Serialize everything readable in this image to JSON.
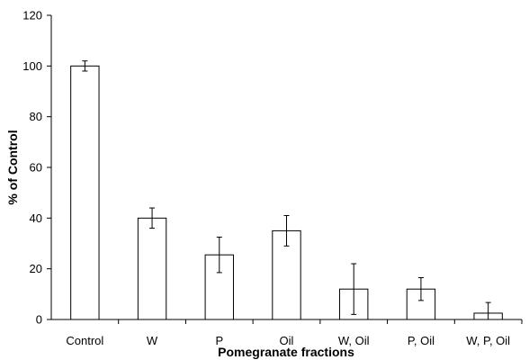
{
  "chart_data": {
    "type": "bar",
    "title": "",
    "xlabel": "Pomegranate fractions",
    "ylabel": "% of Control",
    "ylim": [
      0,
      120
    ],
    "yticks": [
      0,
      20,
      40,
      60,
      80,
      100,
      120
    ],
    "categories": [
      "Control",
      "W",
      "P",
      "Oil",
      "W, Oil",
      "P, Oil",
      "W, P, Oil"
    ],
    "values": [
      100,
      40,
      25.5,
      35,
      12,
      12,
      2.5
    ],
    "errors": [
      2,
      4,
      7,
      6,
      10,
      4.5,
      4.2
    ],
    "grid": false,
    "legend": "none",
    "bar_fill": "#ffffff",
    "bar_stroke": "#000000"
  }
}
